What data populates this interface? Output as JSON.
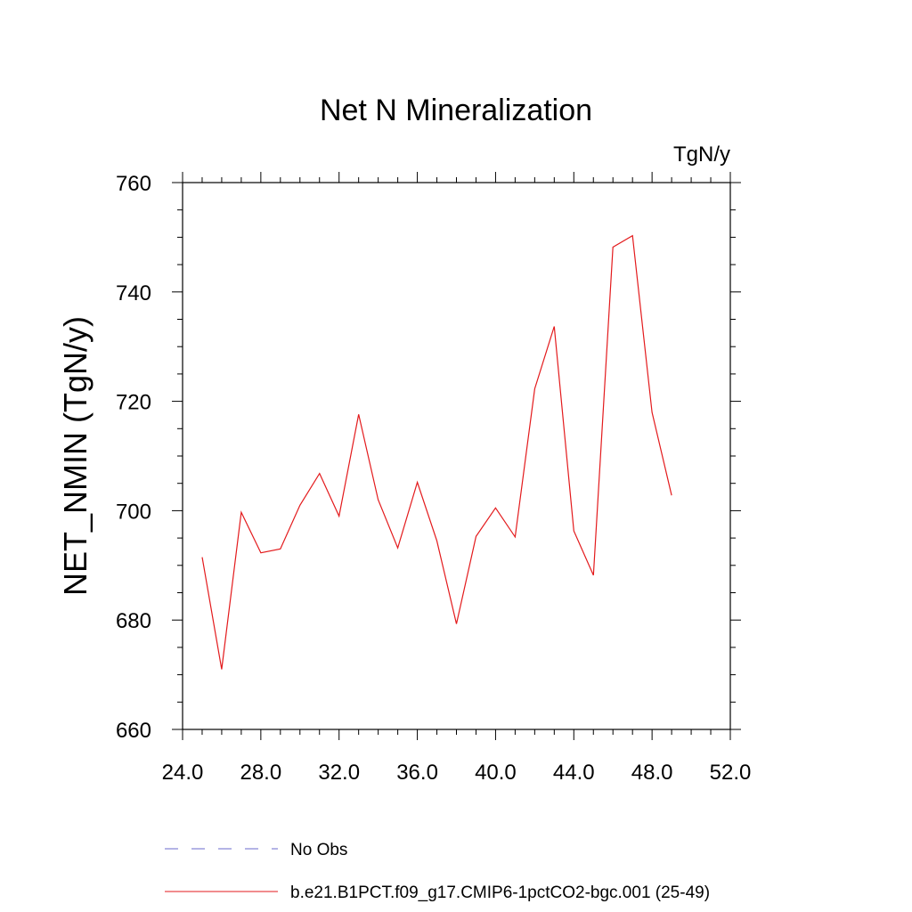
{
  "chart_data": {
    "type": "line",
    "title": "Net N Mineralization",
    "units_label": "TgN/y",
    "xlabel": "",
    "ylabel": "NET_NMIN  (TgN/y)",
    "xlim": [
      24,
      52
    ],
    "ylim": [
      660,
      760
    ],
    "xticks": [
      "24.0",
      "28.0",
      "32.0",
      "36.0",
      "40.0",
      "44.0",
      "48.0",
      "52.0"
    ],
    "yticks": [
      "660",
      "680",
      "700",
      "720",
      "740",
      "760"
    ],
    "grid": false,
    "legend_placement": "bottom",
    "series": [
      {
        "name": "b.e21.B1PCT.f09_g17.CMIP6-1pctCO2-bgc.001 (25-49)",
        "color": "#e31a1c",
        "x": [
          25,
          26,
          27,
          28,
          29,
          30,
          31,
          32,
          33,
          34,
          35,
          36,
          37,
          38,
          39,
          40,
          41,
          42,
          43,
          44,
          45,
          46,
          47,
          48,
          49
        ],
        "y": [
          691.5,
          671.0,
          699.7,
          692.3,
          693.0,
          701.0,
          706.8,
          699.0,
          717.6,
          702.0,
          693.2,
          705.2,
          694.5,
          679.3,
          695.3,
          700.5,
          695.2,
          722.3,
          733.7,
          696.3,
          688.2,
          748.2,
          750.3,
          718.0,
          702.8
        ]
      }
    ],
    "legend": [
      {
        "label": "No Obs",
        "color": "#6a6acd",
        "style": "dashed"
      },
      {
        "label": "b.e21.B1PCT.f09_g17.CMIP6-1pctCO2-bgc.001 (25-49)",
        "color": "#e31a1c",
        "style": "solid"
      }
    ]
  }
}
